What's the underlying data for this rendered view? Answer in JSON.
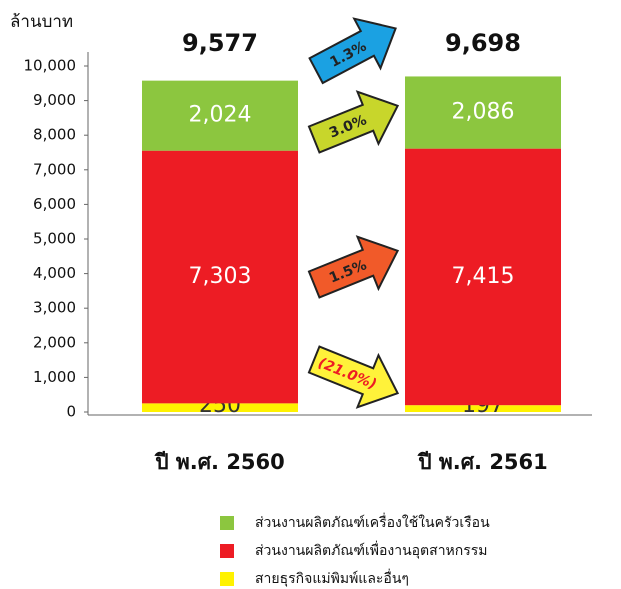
{
  "chart_data": {
    "type": "bar",
    "stacked": true,
    "ylabel": "ล้านบาท",
    "categories": [
      "ปี พ.ศ. 2560",
      "ปี พ.ศ. 2561"
    ],
    "series": [
      {
        "name": "สายธุรกิจแม่พิมพ์และอื่นๆ",
        "color": "#fff200",
        "values": [
          250,
          197
        ]
      },
      {
        "name": "ส่วนงานผลิตภัณฑ์เพื่องานอุตสาหกรรม",
        "color": "#ed1c24",
        "values": [
          7303,
          7415
        ],
        "value_labels": [
          "7,303",
          "7,415"
        ]
      },
      {
        "name": "ส่วนงานผลิตภัณฑ์เครื่องใช้ในครัวเรือน",
        "color": "#8cc63f",
        "values": [
          2024,
          2086
        ],
        "value_labels": [
          "2,024",
          "2,086"
        ]
      }
    ],
    "totals": {
      "values": [
        9577,
        9698
      ],
      "value_labels": [
        "9,577",
        "9,698"
      ]
    },
    "annotations": [
      {
        "text": "1.3%",
        "color": "#1ba1e2"
      },
      {
        "text": "3.0%",
        "color": "#c8d62b"
      },
      {
        "text": "1.5%",
        "color": "#f15a29"
      },
      {
        "text": "(21.0%)",
        "color": "#fff23a"
      }
    ],
    "ylim": [
      0,
      10000
    ],
    "yticks": [
      0,
      {
        "value": 1000,
        "label": "1,000"
      },
      {
        "value": 2000,
        "label": "2,000"
      },
      {
        "value": 3000,
        "label": "3,000"
      },
      {
        "value": 4000,
        "label": "4,000"
      },
      {
        "value": 5000,
        "label": "5,000"
      },
      {
        "value": 6000,
        "label": "6,000"
      },
      {
        "value": 7000,
        "label": "7,000"
      },
      {
        "value": 8000,
        "label": "8,000"
      },
      {
        "value": 9000,
        "label": "9,000"
      },
      {
        "value": 10000,
        "label": "10,000"
      }
    ],
    "grid": false
  }
}
